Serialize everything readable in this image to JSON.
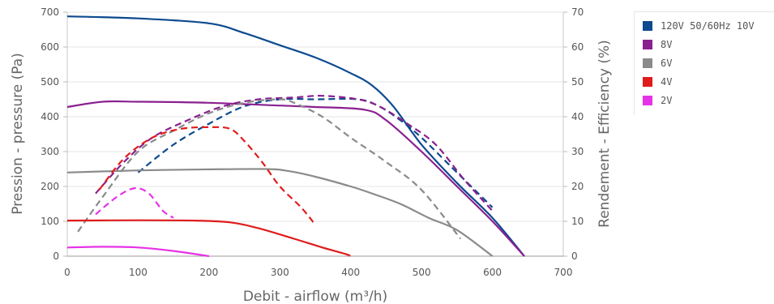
{
  "chart_data": {
    "type": "line",
    "xlabel": "Debit - airflow (m³/h)",
    "ylabel_left": "Pression - pressure (Pa)",
    "ylabel_right": "Rendement - Efficiency (%)",
    "xlim": [
      0,
      700
    ],
    "ylim_left": [
      0,
      700
    ],
    "ylim_right": [
      0,
      70
    ],
    "x_ticks": [
      "0",
      "100",
      "200",
      "300",
      "400",
      "500",
      "600",
      "700"
    ],
    "y_left_ticks": [
      "0",
      "100",
      "200",
      "300",
      "400",
      "500",
      "600",
      "700"
    ],
    "y_right_ticks": [
      "0",
      "10",
      "20",
      "30",
      "40",
      "50",
      "60",
      "70"
    ],
    "grid": "horizontal",
    "legend_position": "right",
    "series": [
      {
        "name": "120V 50/60Hz 10V",
        "color": "#0d4a8f",
        "pressure": [
          [
            0,
            688
          ],
          [
            100,
            682
          ],
          [
            200,
            668
          ],
          [
            250,
            640
          ],
          [
            300,
            605
          ],
          [
            350,
            570
          ],
          [
            400,
            525
          ],
          [
            430,
            490
          ],
          [
            460,
            430
          ],
          [
            500,
            320
          ],
          [
            550,
            210
          ],
          [
            600,
            110
          ],
          [
            645,
            0
          ]
        ],
        "efficiency": [
          [
            100,
            24
          ],
          [
            150,
            32
          ],
          [
            200,
            38
          ],
          [
            250,
            43
          ],
          [
            300,
            45
          ],
          [
            350,
            45
          ],
          [
            410,
            45
          ],
          [
            440,
            43
          ],
          [
            470,
            39
          ],
          [
            500,
            34
          ],
          [
            540,
            26
          ],
          [
            575,
            19
          ],
          [
            600,
            14
          ]
        ]
      },
      {
        "name": "8V",
        "color": "#8a2090",
        "pressure": [
          [
            0,
            428
          ],
          [
            50,
            443
          ],
          [
            100,
            443
          ],
          [
            200,
            440
          ],
          [
            300,
            432
          ],
          [
            350,
            428
          ],
          [
            420,
            420
          ],
          [
            450,
            390
          ],
          [
            500,
            300
          ],
          [
            550,
            200
          ],
          [
            600,
            100
          ],
          [
            645,
            0
          ]
        ],
        "efficiency": [
          [
            40,
            18
          ],
          [
            80,
            27
          ],
          [
            120,
            34
          ],
          [
            170,
            39
          ],
          [
            220,
            43
          ],
          [
            270,
            45
          ],
          [
            320,
            45.5
          ],
          [
            360,
            46
          ],
          [
            410,
            45
          ],
          [
            440,
            43
          ],
          [
            480,
            38
          ],
          [
            520,
            32
          ],
          [
            560,
            22
          ],
          [
            600,
            13
          ]
        ]
      },
      {
        "name": "6V",
        "color": "#8a8a8a",
        "pressure": [
          [
            0,
            240
          ],
          [
            100,
            246
          ],
          [
            200,
            249
          ],
          [
            280,
            250
          ],
          [
            310,
            245
          ],
          [
            350,
            228
          ],
          [
            400,
            200
          ],
          [
            430,
            180
          ],
          [
            470,
            150
          ],
          [
            510,
            110
          ],
          [
            550,
            75
          ],
          [
            600,
            0
          ]
        ],
        "efficiency": [
          [
            15,
            7
          ],
          [
            50,
            17
          ],
          [
            100,
            30
          ],
          [
            150,
            36
          ],
          [
            200,
            41
          ],
          [
            250,
            44
          ],
          [
            300,
            45
          ],
          [
            320,
            44
          ],
          [
            360,
            40
          ],
          [
            400,
            34
          ],
          [
            450,
            27
          ],
          [
            500,
            19
          ],
          [
            555,
            5
          ]
        ]
      },
      {
        "name": "4V",
        "color": "#e01b1b",
        "pressure": [
          [
            0,
            102
          ],
          [
            100,
            103
          ],
          [
            180,
            102
          ],
          [
            230,
            97
          ],
          [
            270,
            80
          ],
          [
            320,
            50
          ],
          [
            360,
            25
          ],
          [
            395,
            5
          ],
          [
            398,
            0
          ]
        ],
        "efficiency": [
          [
            45,
            19
          ],
          [
            80,
            28
          ],
          [
            120,
            34
          ],
          [
            160,
            36.5
          ],
          [
            200,
            37
          ],
          [
            230,
            36.5
          ],
          [
            250,
            33
          ],
          [
            275,
            27
          ],
          [
            300,
            20
          ],
          [
            330,
            14
          ],
          [
            350,
            9
          ]
        ]
      },
      {
        "name": "2V",
        "color": "#e632e6",
        "pressure": [
          [
            0,
            25
          ],
          [
            50,
            27
          ],
          [
            100,
            25
          ],
          [
            150,
            15
          ],
          [
            200,
            0
          ]
        ],
        "efficiency": [
          [
            40,
            12
          ],
          [
            70,
            17
          ],
          [
            95,
            19.5
          ],
          [
            115,
            18
          ],
          [
            135,
            13
          ],
          [
            150,
            11
          ]
        ]
      }
    ]
  }
}
